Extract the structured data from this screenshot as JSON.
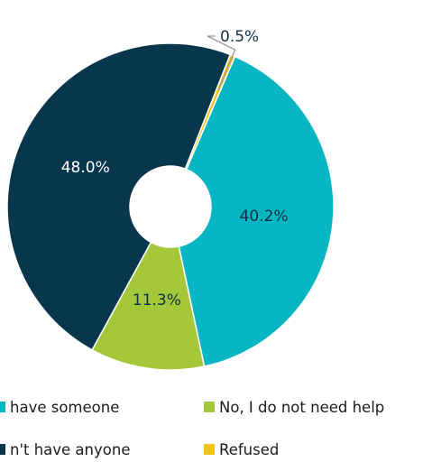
{
  "chart_data": {
    "type": "pie",
    "donut": true,
    "slices": [
      {
        "label": "No, I do not need help",
        "value": 11.3,
        "display": "11.3%",
        "color": "#a5c83b"
      },
      {
        "label": "No, I need help but don't have anyone",
        "value": 48.0,
        "display": "48.0%",
        "color": "#08364d"
      },
      {
        "label": "Refused",
        "value": 0.5,
        "display": "0.5%",
        "color": "#f0c419"
      },
      {
        "label": "Yes, I have someone",
        "value": 40.2,
        "display": "40.2%",
        "color": "#07b6c2"
      }
    ],
    "legend": [
      {
        "text": "have someone",
        "color": "#07b6c2"
      },
      {
        "text": "n't have anyone",
        "color": "#08364d"
      },
      {
        "text": "No, I do not need help",
        "color": "#a5c83b"
      },
      {
        "text": "Refused",
        "color": "#f0c419"
      }
    ],
    "legend_position": "bottom",
    "title": ""
  }
}
